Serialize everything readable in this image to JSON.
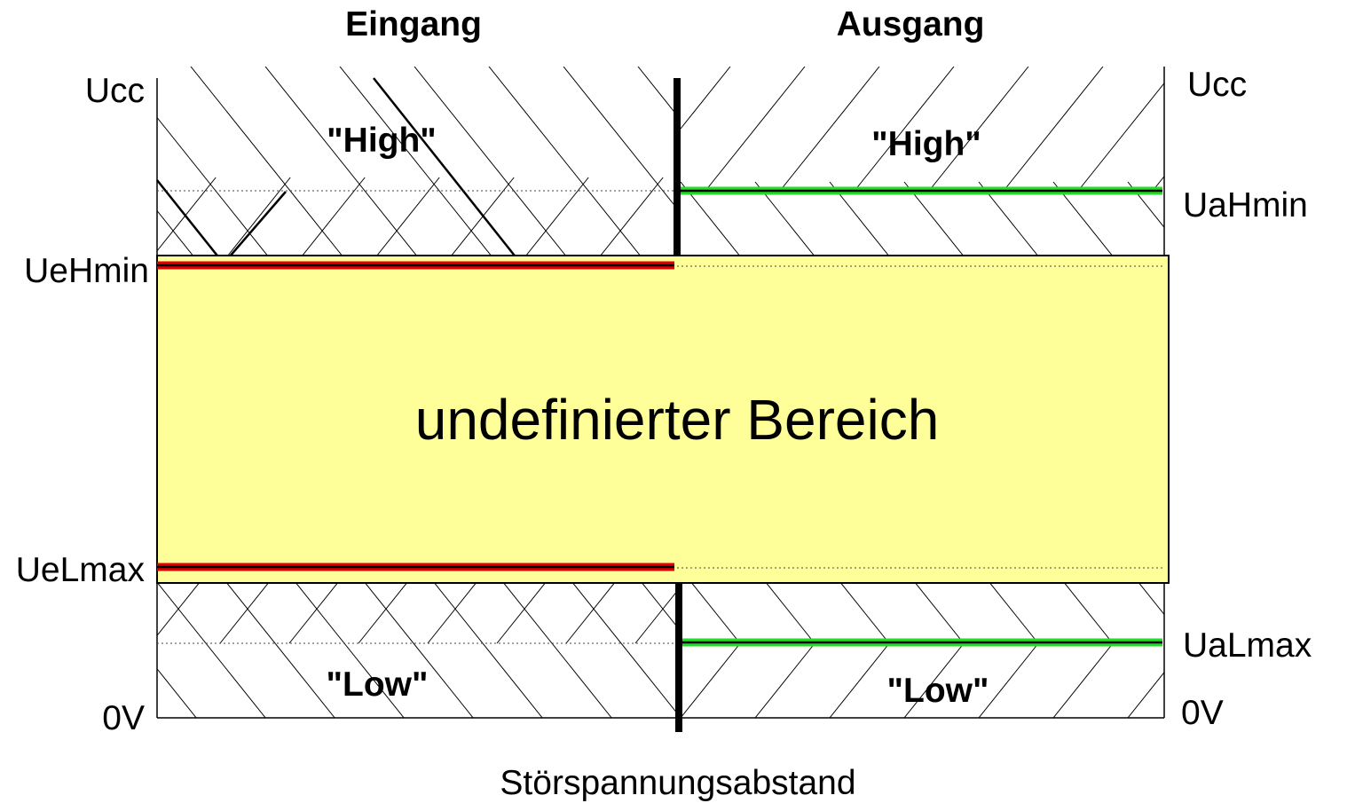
{
  "headers": {
    "input": "Eingang",
    "output": "Ausgang"
  },
  "levels_left": {
    "ucc": "Ucc",
    "uehmin": "UeHmin",
    "uelmax": "UeLmax",
    "zero": "0V"
  },
  "levels_right": {
    "ucc": "Ucc",
    "uahmin": "UaHmin",
    "ualmax": "UaLmax",
    "zero": "0V"
  },
  "zones": {
    "input_high": "\"High\"",
    "output_high": "\"High\"",
    "input_low": "\"Low\"",
    "output_low": "\"Low\"",
    "undefined": "undefinierter Bereich"
  },
  "footer": {
    "noise_margin": "Störspannungsabstand"
  },
  "colors": {
    "undefined_fill": "#FFFF99",
    "input_threshold": "#E00000",
    "output_threshold": "#22DD22",
    "outline": "#000000"
  }
}
